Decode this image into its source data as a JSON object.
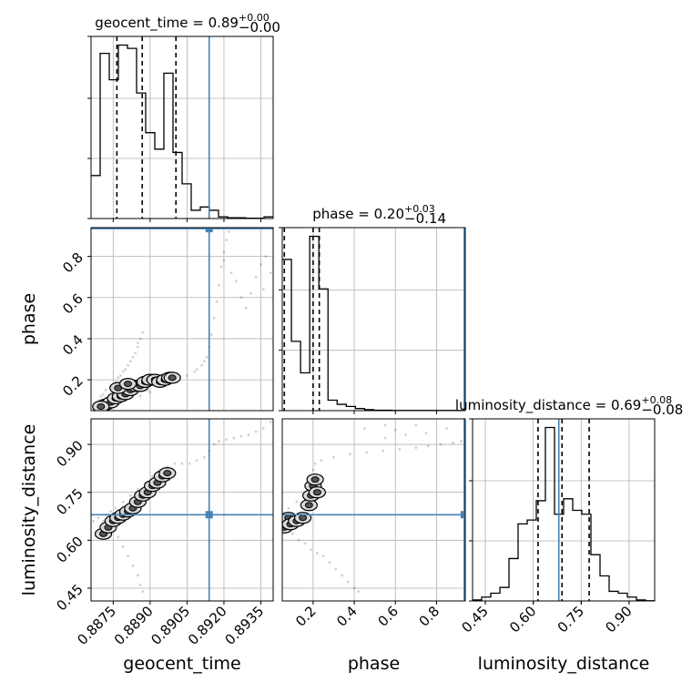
{
  "chart_data": {
    "type": "corner",
    "parameters": [
      "geocent_time",
      "phase",
      "luminosity_distance"
    ],
    "truths": {
      "geocent_time": 0.8914,
      "phase": 0.935,
      "luminosity_distance": 0.68
    },
    "titles": [
      {
        "param": "geocent_time",
        "base": "geocent_time = 0.89",
        "sup": "+0.00",
        "sub": "−0.00"
      },
      {
        "param": "phase",
        "base": "phase = 0.20",
        "sup": "+0.03",
        "sub": "−0.14"
      },
      {
        "param": "luminosity_distance",
        "base": "luminosity_distance = 0.69",
        "sup": "+0.08",
        "sub": "−0.08"
      }
    ],
    "axes": {
      "geocent_time": {
        "range": [
          0.8866,
          0.894
        ],
        "ticks": [
          "0.8875",
          "0.8890",
          "0.8905",
          "0.8920",
          "0.8935"
        ],
        "label": "geocent_time"
      },
      "phase": {
        "range": [
          0.05,
          0.94
        ],
        "ticks": [
          "0.2",
          "0.4",
          "0.6",
          "0.8"
        ],
        "label": "phase"
      },
      "luminosity_distance": {
        "range": [
          0.41,
          0.98
        ],
        "ticks": [
          "0.45",
          "0.60",
          "0.75",
          "0.90"
        ],
        "label": "luminosity_distance"
      }
    },
    "histograms": {
      "geocent_time": {
        "edges": [
          0.8866,
          0.88697,
          0.88734,
          0.88771,
          0.88808,
          0.88845,
          0.88882,
          0.88919,
          0.88956,
          0.88993,
          0.8903,
          0.89067,
          0.89104,
          0.89141,
          0.89178,
          0.89215,
          0.89252,
          0.89289,
          0.89326,
          0.89363,
          0.894
        ],
        "counts": [
          0.26,
          1.0,
          0.84,
          1.05,
          1.03,
          0.76,
          0.52,
          0.42,
          0.88,
          0.4,
          0.21,
          0.05,
          0.07,
          0.05,
          0.01,
          0.005,
          0.005,
          0.002,
          0.002,
          0.01
        ],
        "quantiles": [
          0.88765,
          0.88868,
          0.89005
        ]
      },
      "phase": {
        "edges": [
          0.05,
          0.0945,
          0.139,
          0.1835,
          0.228,
          0.2725,
          0.317,
          0.3615,
          0.406,
          0.4505,
          0.495,
          0.5395,
          0.584,
          0.6285,
          0.673,
          0.7175,
          0.762,
          0.8065,
          0.851,
          0.8955,
          0.94
        ],
        "counts": [
          0.72,
          0.33,
          0.18,
          0.83,
          0.58,
          0.05,
          0.03,
          0.02,
          0.01,
          0.005,
          0.002,
          0.002,
          0.001,
          0.001,
          0.001,
          0.001,
          0.001,
          0.001,
          0.001,
          0.001
        ],
        "quantiles": [
          0.06,
          0.2,
          0.23
        ]
      },
      "luminosity_distance": {
        "edges": [
          0.41,
          0.4385,
          0.467,
          0.4955,
          0.524,
          0.5525,
          0.581,
          0.6095,
          0.638,
          0.6665,
          0.695,
          0.7235,
          0.752,
          0.7805,
          0.809,
          0.8375,
          0.866,
          0.8945,
          0.923,
          0.9515,
          0.98
        ],
        "counts": [
          0.005,
          0.02,
          0.04,
          0.07,
          0.22,
          0.4,
          0.42,
          0.52,
          0.9,
          0.45,
          0.53,
          0.47,
          0.45,
          0.24,
          0.13,
          0.05,
          0.04,
          0.02,
          0.005,
          0.001
        ],
        "quantiles": [
          0.615,
          0.69,
          0.775
        ]
      }
    },
    "scatter": {
      "phase_vs_geocent_time": [
        [
          0.8867,
          0.06
        ],
        [
          0.8868,
          0.08
        ],
        [
          0.8869,
          0.1
        ],
        [
          0.887,
          0.12
        ],
        [
          0.8871,
          0.13
        ],
        [
          0.8872,
          0.15
        ],
        [
          0.8874,
          0.17
        ],
        [
          0.8876,
          0.19
        ],
        [
          0.8878,
          0.22
        ],
        [
          0.888,
          0.25
        ],
        [
          0.8882,
          0.29
        ],
        [
          0.8884,
          0.33
        ],
        [
          0.8885,
          0.36
        ],
        [
          0.8886,
          0.4
        ],
        [
          0.8887,
          0.43
        ],
        [
          0.8885,
          0.38
        ],
        [
          0.8883,
          0.31
        ],
        [
          0.8881,
          0.27
        ],
        [
          0.8879,
          0.24
        ],
        [
          0.8877,
          0.21
        ],
        [
          0.8886,
          0.12
        ],
        [
          0.889,
          0.14
        ],
        [
          0.8894,
          0.18
        ],
        [
          0.8898,
          0.2
        ],
        [
          0.8902,
          0.21
        ],
        [
          0.8905,
          0.22
        ],
        [
          0.8908,
          0.24
        ],
        [
          0.8911,
          0.27
        ],
        [
          0.8913,
          0.31
        ],
        [
          0.8914,
          0.36
        ],
        [
          0.8915,
          0.42
        ],
        [
          0.8916,
          0.5
        ],
        [
          0.8917,
          0.58
        ],
        [
          0.8918,
          0.66
        ],
        [
          0.8919,
          0.75
        ],
        [
          0.892,
          0.82
        ],
        [
          0.8921,
          0.88
        ],
        [
          0.8922,
          0.92
        ],
        [
          0.8925,
          0.68
        ],
        [
          0.8927,
          0.6
        ],
        [
          0.8929,
          0.55
        ],
        [
          0.8931,
          0.62
        ],
        [
          0.8933,
          0.7
        ],
        [
          0.8935,
          0.76
        ],
        [
          0.8937,
          0.8
        ],
        [
          0.8939,
          0.72
        ],
        [
          0.8936,
          0.64
        ],
        [
          0.8923,
          0.72
        ],
        [
          0.892,
          0.78
        ],
        [
          0.8909,
          0.25
        ],
        [
          0.8912,
          0.29
        ],
        [
          0.8893,
          0.17
        ],
        [
          0.8896,
          0.19
        ],
        [
          0.89,
          0.2
        ],
        [
          0.8889,
          0.15
        ],
        [
          0.8875,
          0.09
        ],
        [
          0.8873,
          0.08
        ],
        [
          0.887,
          0.07
        ],
        [
          0.8882,
          0.12
        ],
        [
          0.8879,
          0.11
        ]
      ],
      "luminosity_distance_vs_geocent_time": [
        [
          0.8867,
          0.66
        ],
        [
          0.8869,
          0.67
        ],
        [
          0.8871,
          0.66
        ],
        [
          0.8873,
          0.65
        ],
        [
          0.8875,
          0.63
        ],
        [
          0.8877,
          0.61
        ],
        [
          0.8879,
          0.58
        ],
        [
          0.8881,
          0.55
        ],
        [
          0.8883,
          0.52
        ],
        [
          0.8885,
          0.49
        ],
        [
          0.8886,
          0.46
        ],
        [
          0.8887,
          0.44
        ],
        [
          0.8876,
          0.7
        ],
        [
          0.8879,
          0.72
        ],
        [
          0.8882,
          0.74
        ],
        [
          0.8885,
          0.76
        ],
        [
          0.8888,
          0.78
        ],
        [
          0.8891,
          0.8
        ],
        [
          0.8894,
          0.82
        ],
        [
          0.8897,
          0.83
        ],
        [
          0.89,
          0.84
        ],
        [
          0.8903,
          0.84
        ],
        [
          0.8906,
          0.84
        ],
        [
          0.8909,
          0.85
        ],
        [
          0.8912,
          0.86
        ],
        [
          0.8914,
          0.88
        ],
        [
          0.8916,
          0.9
        ],
        [
          0.8918,
          0.91
        ],
        [
          0.8921,
          0.915
        ],
        [
          0.8924,
          0.92
        ],
        [
          0.8927,
          0.925
        ],
        [
          0.893,
          0.93
        ],
        [
          0.8933,
          0.94
        ],
        [
          0.8936,
          0.95
        ],
        [
          0.8939,
          0.97
        ],
        [
          0.8872,
          0.68
        ],
        [
          0.8874,
          0.69
        ],
        [
          0.8884,
          0.71
        ],
        [
          0.8888,
          0.73
        ],
        [
          0.8895,
          0.77
        ],
        [
          0.8898,
          0.79
        ]
      ],
      "luminosity_distance_vs_phase": [
        [
          0.06,
          0.66
        ],
        [
          0.07,
          0.65
        ],
        [
          0.08,
          0.63
        ],
        [
          0.1,
          0.62
        ],
        [
          0.13,
          0.6
        ],
        [
          0.16,
          0.59
        ],
        [
          0.19,
          0.57
        ],
        [
          0.22,
          0.56
        ],
        [
          0.25,
          0.55
        ],
        [
          0.28,
          0.53
        ],
        [
          0.31,
          0.51
        ],
        [
          0.34,
          0.49
        ],
        [
          0.37,
          0.47
        ],
        [
          0.4,
          0.45
        ],
        [
          0.42,
          0.44
        ],
        [
          0.06,
          0.68
        ],
        [
          0.08,
          0.7
        ],
        [
          0.12,
          0.72
        ],
        [
          0.16,
          0.74
        ],
        [
          0.19,
          0.76
        ],
        [
          0.21,
          0.79
        ],
        [
          0.2,
          0.82
        ],
        [
          0.21,
          0.84
        ],
        [
          0.24,
          0.85
        ],
        [
          0.3,
          0.86
        ],
        [
          0.38,
          0.87
        ],
        [
          0.46,
          0.875
        ],
        [
          0.54,
          0.88
        ],
        [
          0.62,
          0.885
        ],
        [
          0.7,
          0.89
        ],
        [
          0.76,
          0.895
        ],
        [
          0.82,
          0.9
        ],
        [
          0.88,
          0.905
        ],
        [
          0.92,
          0.91
        ],
        [
          0.55,
          0.92
        ],
        [
          0.65,
          0.93
        ],
        [
          0.75,
          0.935
        ],
        [
          0.45,
          0.95
        ],
        [
          0.55,
          0.96
        ],
        [
          0.7,
          0.96
        ],
        [
          0.85,
          0.95
        ],
        [
          0.6,
          0.945
        ]
      ]
    },
    "densities": {
      "phase_vs_geocent_time": [
        [
          0.8872,
          0.08
        ],
        [
          0.8874,
          0.09
        ],
        [
          0.8876,
          0.11
        ],
        [
          0.8878,
          0.12
        ],
        [
          0.888,
          0.13
        ],
        [
          0.8882,
          0.15
        ],
        [
          0.8884,
          0.17
        ],
        [
          0.8886,
          0.17
        ],
        [
          0.8888,
          0.19
        ],
        [
          0.889,
          0.2
        ],
        [
          0.8892,
          0.2
        ],
        [
          0.8894,
          0.19
        ],
        [
          0.8896,
          0.2
        ],
        [
          0.8898,
          0.21
        ],
        [
          0.8899,
          0.21
        ],
        [
          0.887,
          0.07
        ],
        [
          0.8877,
          0.16
        ],
        [
          0.8881,
          0.18
        ]
      ],
      "luminosity_distance_vs_geocent_time": [
        [
          0.8871,
          0.62
        ],
        [
          0.8873,
          0.64
        ],
        [
          0.8875,
          0.66
        ],
        [
          0.8877,
          0.67
        ],
        [
          0.8879,
          0.68
        ],
        [
          0.8881,
          0.69
        ],
        [
          0.8883,
          0.7
        ],
        [
          0.8885,
          0.72
        ],
        [
          0.8887,
          0.74
        ],
        [
          0.8889,
          0.75
        ],
        [
          0.8891,
          0.77
        ],
        [
          0.8893,
          0.78
        ],
        [
          0.8895,
          0.8
        ],
        [
          0.8897,
          0.81
        ]
      ],
      "luminosity_distance_vs_phase": [
        [
          0.06,
          0.64
        ],
        [
          0.07,
          0.66
        ],
        [
          0.08,
          0.67
        ],
        [
          0.09,
          0.65
        ],
        [
          0.12,
          0.66
        ],
        [
          0.15,
          0.67
        ],
        [
          0.18,
          0.71
        ],
        [
          0.19,
          0.74
        ],
        [
          0.2,
          0.77
        ],
        [
          0.21,
          0.79
        ],
        [
          0.22,
          0.75
        ]
      ]
    },
    "grid": true
  }
}
